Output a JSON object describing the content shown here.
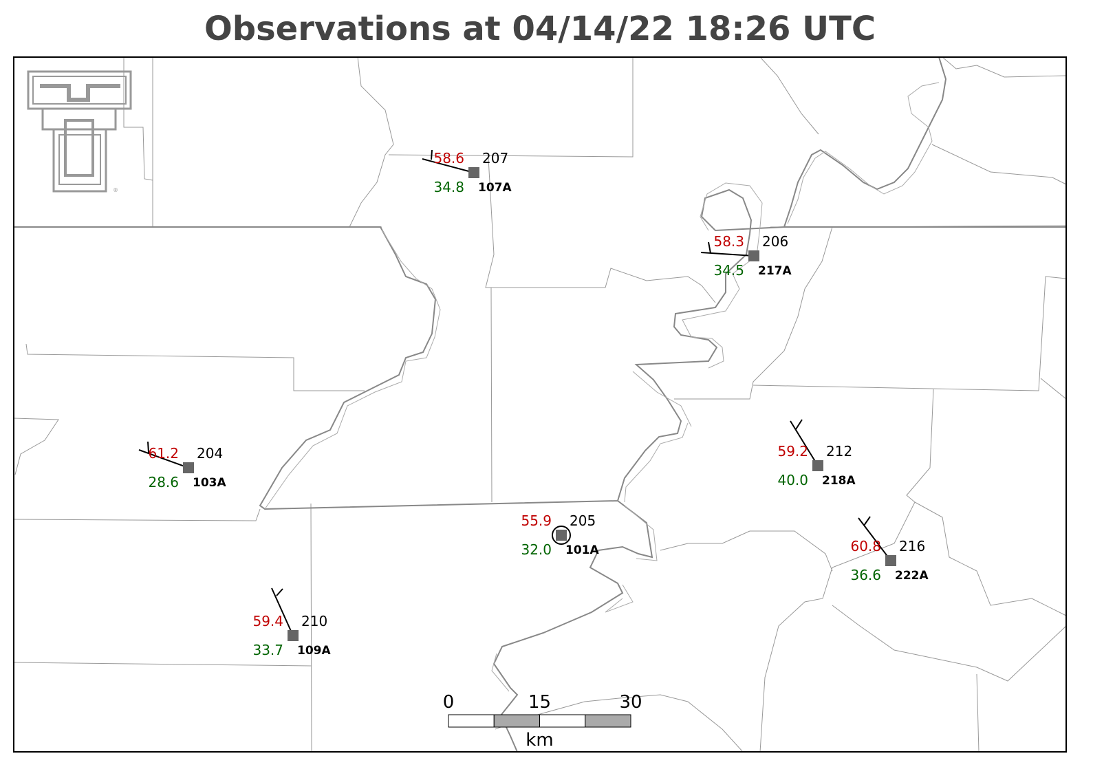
{
  "header": {
    "title": "Observations at 04/14/22 18:26 UTC"
  },
  "logo": {
    "mark": "®"
  },
  "stations": [
    {
      "temperature": "58.6",
      "dewpoint": "34.8",
      "value": "207",
      "id": "107A"
    },
    {
      "temperature": "58.3",
      "dewpoint": "34.5",
      "value": "206",
      "id": "217A"
    },
    {
      "temperature": "61.2",
      "dewpoint": "28.6",
      "value": "204",
      "id": "103A"
    },
    {
      "temperature": "55.9",
      "dewpoint": "32.0",
      "value": "205",
      "id": "101A"
    },
    {
      "temperature": "59.2",
      "dewpoint": "40.0",
      "value": "212",
      "id": "218A"
    },
    {
      "temperature": "60.8",
      "dewpoint": "36.6",
      "value": "216",
      "id": "222A"
    },
    {
      "temperature": "59.4",
      "dewpoint": "33.7",
      "value": "210",
      "id": "109A"
    }
  ],
  "scale": {
    "ticks": [
      0,
      15,
      30
    ],
    "unit": "km"
  }
}
